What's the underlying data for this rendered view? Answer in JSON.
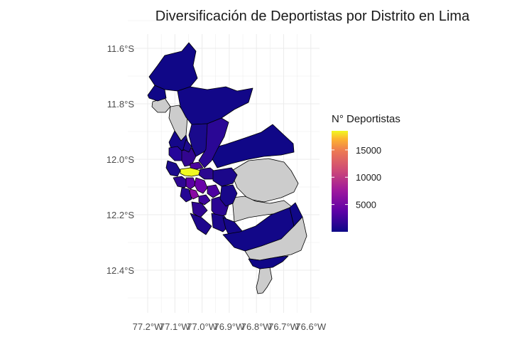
{
  "title": "Diversificación de Deportistas por Distrito en Lima",
  "chart_data": {
    "type": "choropleth",
    "title": "Diversificación de Deportistas por Distrito en Lima",
    "y_ticks": [
      "11.6°S",
      "11.8°S",
      "12.0°S",
      "12.2°S",
      "12.4°S"
    ],
    "x_ticks": [
      "77.2°W",
      "77.1°W",
      "77.0°W",
      "76.9°W",
      "76.8°W",
      "76.7°W",
      "76.6°W"
    ],
    "xlim": [
      -77.2,
      -76.6
    ],
    "ylim": [
      -12.4,
      -11.6
    ],
    "grid": true,
    "legend": {
      "title": "N° Deportistas",
      "position": "right",
      "scale": "plasma",
      "breaks": [
        5000,
        10000,
        15000
      ],
      "labels": [
        "5000",
        "10000",
        "15000"
      ],
      "min": 0,
      "max": 18500
    },
    "missing_color": "#cccccc",
    "colors": {
      "low": "#0d0887",
      "mid": "#cc4778",
      "high": "#f0f921",
      "border": "#000000",
      "grid": "#ebebeb"
    }
  }
}
